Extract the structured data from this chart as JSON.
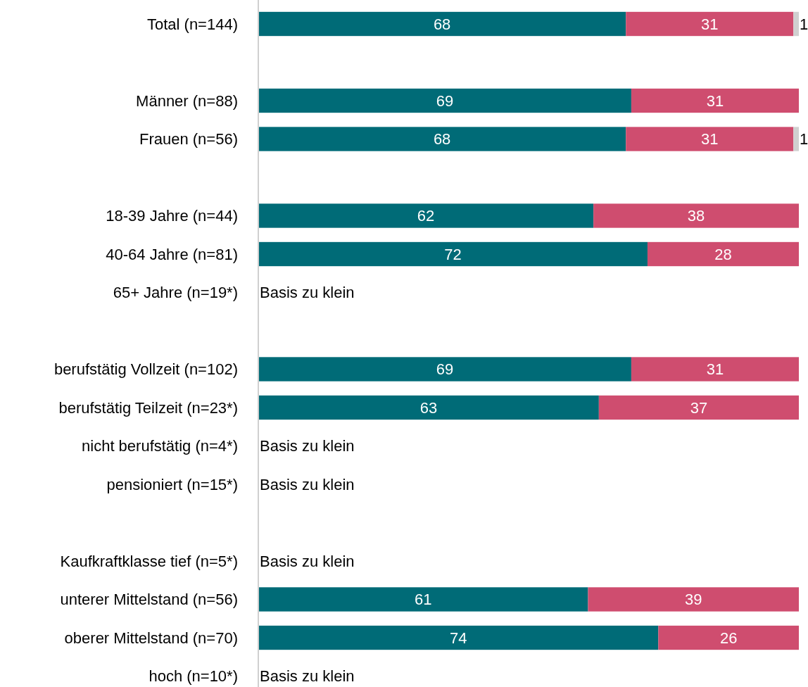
{
  "chart_data": {
    "type": "bar",
    "orientation": "horizontal",
    "stacked": true,
    "data_labels": true,
    "tick_labels": "y",
    "xlim": [
      0,
      100
    ],
    "categories": [
      "Total (n=144)",
      null,
      "Männer (n=88)",
      "Frauen (n=56)",
      null,
      "18-39 Jahre (n=44)",
      "40-64 Jahre (n=81)",
      "65+ Jahre (n=19*)",
      null,
      "berufstätig Vollzeit (n=102)",
      "berufstätig Teilzeit (n=23*)",
      "nicht berufstätig (n=4*)",
      "pensioniert (n=15*)",
      null,
      "Kaufkraftklasse tief (n=5*)",
      "unterer Mittelstand (n=56)",
      "oberer Mittelstand (n=70)",
      "hoch (n=10*)"
    ],
    "series": [
      {
        "color": "#006b77",
        "values": [
          68,
          null,
          69,
          68,
          null,
          62,
          72,
          null,
          null,
          69,
          63,
          null,
          null,
          null,
          null,
          61,
          74,
          null
        ]
      },
      {
        "color": "#cf4d6f",
        "values": [
          31,
          null,
          31,
          31,
          null,
          38,
          28,
          null,
          null,
          31,
          37,
          null,
          null,
          null,
          null,
          39,
          26,
          null
        ]
      },
      {
        "color": "#d0d0d0",
        "values": [
          1,
          null,
          null,
          1,
          null,
          null,
          null,
          null,
          null,
          null,
          null,
          null,
          null,
          null,
          null,
          null,
          null,
          null
        ]
      }
    ],
    "annotations": [
      "Basis zu klein",
      "Basis zu klein",
      "Basis zu klein",
      "Basis zu klein",
      "Basis zu klein"
    ]
  }
}
